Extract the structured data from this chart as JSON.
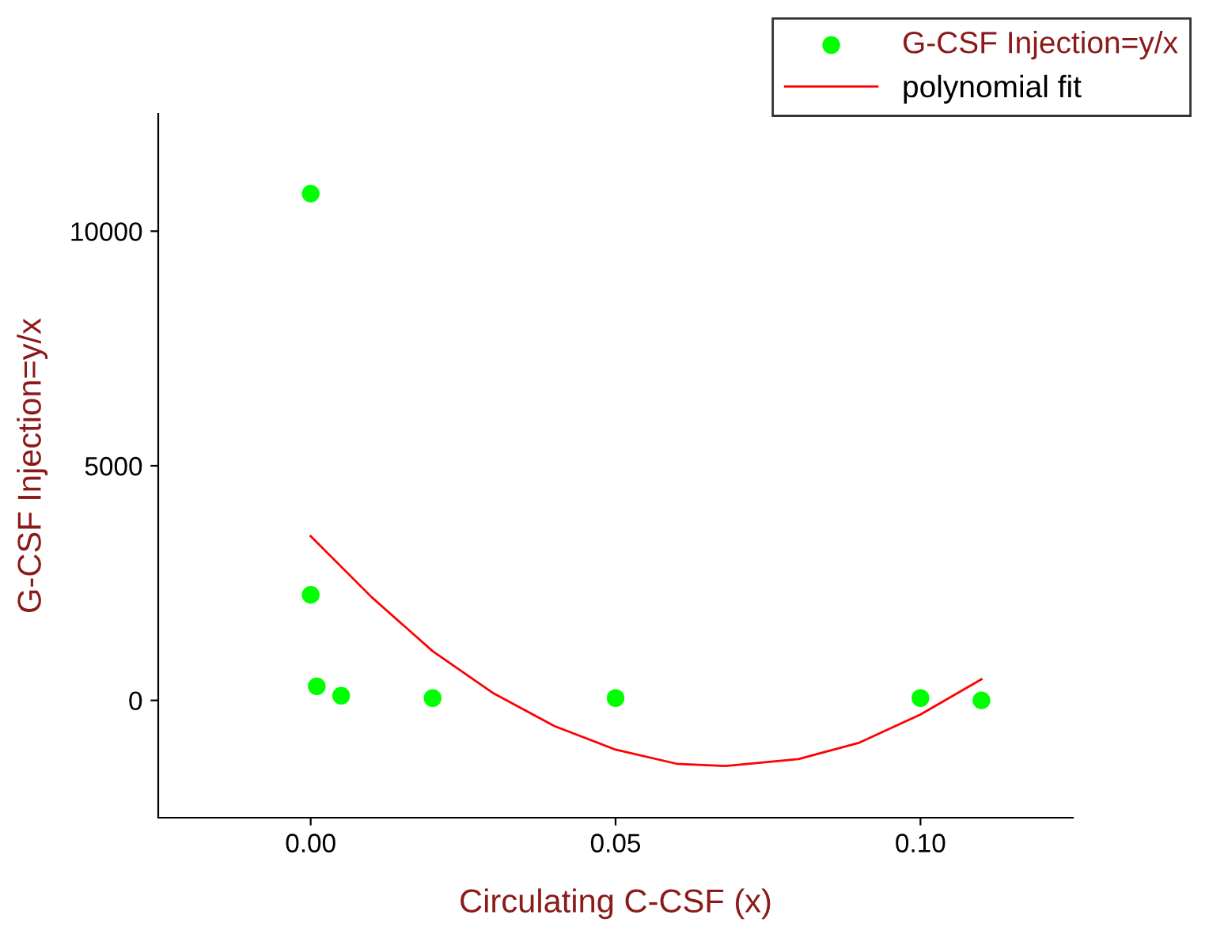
{
  "chart_data": {
    "type": "scatter",
    "xlabel": "Circulating C-CSF (x)",
    "ylabel": "G-CSF Injection=y/x",
    "xlim": [
      -0.025,
      0.125
    ],
    "xticks": [
      {
        "value": 0.0,
        "label": "0.00"
      },
      {
        "value": 0.05,
        "label": "0.05"
      },
      {
        "value": 0.1,
        "label": "0.10"
      }
    ],
    "ylim": [
      -2500,
      12500
    ],
    "yticks": [
      0,
      5000,
      10000
    ],
    "grid": false,
    "legend": "top right",
    "series": [
      {
        "name": "G-CSF Injection=y/x",
        "color": "#00ff00",
        "marker": "circle",
        "x": [
          0,
          0,
          0.001,
          0.005,
          0.02,
          0.05,
          0.1,
          0.11
        ],
        "values": [
          10800,
          2250,
          300,
          100,
          50,
          50,
          50,
          0
        ]
      },
      {
        "name": "polynomial fit",
        "type": "line",
        "color": "#ff0000",
        "x": [
          0,
          0.01,
          0.02,
          0.03,
          0.04,
          0.05,
          0.06,
          0.068,
          0.08,
          0.09,
          0.1,
          0.11
        ],
        "values": [
          3500,
          2200,
          1050,
          150,
          -550,
          -1050,
          -1350,
          -1400,
          -1250,
          -900,
          -300,
          450
        ]
      }
    ]
  }
}
